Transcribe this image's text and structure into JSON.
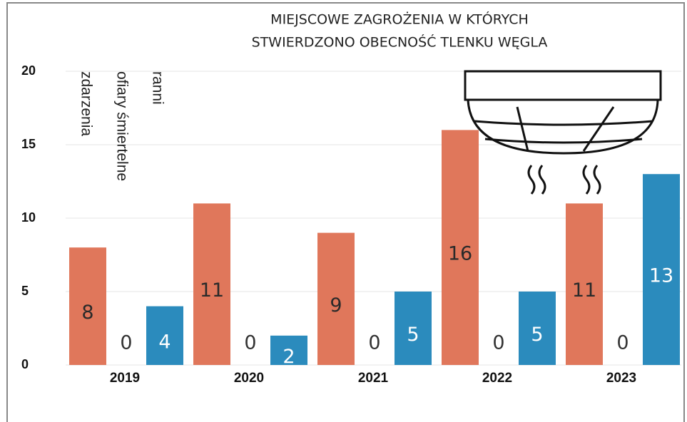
{
  "chart_data": {
    "type": "bar",
    "title": [
      "MIEJSCOWE ZAGROŻENIA W KTÓRYCH",
      "STWIERDZONO OBECNOŚĆ TLENKU WĘGLA"
    ],
    "categories": [
      "2019",
      "2020",
      "2021",
      "2022",
      "2023"
    ],
    "series": [
      {
        "name": "zdarzenia",
        "color": "#e0775b",
        "values": [
          8,
          11,
          9,
          16,
          11
        ]
      },
      {
        "name": "ofiary śmiertelne",
        "values": [
          0,
          0,
          0,
          0,
          0
        ]
      },
      {
        "name": "ranni",
        "color": "#2b8bbd",
        "values": [
          4,
          2,
          5,
          5,
          13
        ]
      }
    ],
    "ylim": [
      0,
      20
    ],
    "yticks": [
      0,
      5,
      10,
      15,
      20
    ],
    "grid": true
  }
}
